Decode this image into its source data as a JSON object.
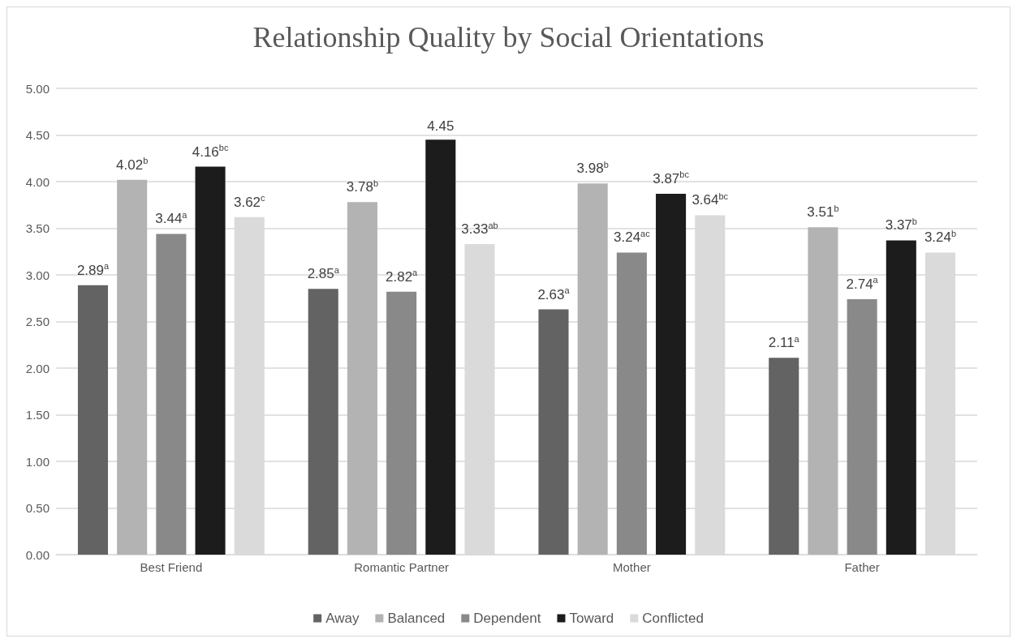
{
  "chart_data": {
    "type": "bar",
    "title": "Relationship Quality by Social Orientations",
    "categories": [
      "Best Friend",
      "Romantic Partner",
      "Mother",
      "Father"
    ],
    "series": [
      {
        "name": "Away",
        "color": "#636363",
        "values": [
          2.89,
          2.85,
          2.63,
          2.11
        ],
        "value_labels": [
          "2.89$^{a}$",
          "2.85$^{a}$",
          "2.63$^{a}$",
          "2.11$^{a}$"
        ]
      },
      {
        "name": "Balanced",
        "color": "#b3b3b3",
        "values": [
          4.02,
          3.78,
          3.98,
          3.51
        ],
        "value_labels": [
          "4.02$^{b}$",
          "3.78$^{b}$",
          "3.98$^{b}$",
          "3.51$^{b}$"
        ]
      },
      {
        "name": "Dependent",
        "color": "#898989",
        "values": [
          3.44,
          2.82,
          3.24,
          2.74
        ],
        "value_labels": [
          "3.44$^{a}$",
          "2.82$^{a}$",
          "3.24$^{ac}$",
          "2.74$^{a}$"
        ]
      },
      {
        "name": "Toward",
        "color": "#1c1c1c",
        "values": [
          4.16,
          4.45,
          3.87,
          3.37
        ],
        "value_labels": [
          "4.16$^{bc}$",
          "4.45",
          "3.87$^{bc}$",
          "3.37$^{b}$"
        ]
      },
      {
        "name": "Conflicted",
        "color": "#dadada",
        "values": [
          3.62,
          3.33,
          3.64,
          3.24
        ],
        "value_labels": [
          "3.62$^{c}$",
          "3.33$^{ab}$",
          "3.64$^{bc}$",
          "3.24$^{b}$"
        ]
      }
    ],
    "ylim": [
      0,
      5
    ],
    "yticks": [
      {
        "value": 0,
        "label": "0.00"
      },
      {
        "value": 0.5,
        "label": "0.50"
      },
      {
        "value": 1,
        "label": "1.00"
      },
      {
        "value": 1.5,
        "label": "1.50"
      },
      {
        "value": 2,
        "label": "2.00"
      },
      {
        "value": 2.5,
        "label": "2.50"
      },
      {
        "value": 3,
        "label": "3.00"
      },
      {
        "value": 3.5,
        "label": "3.50"
      },
      {
        "value": 4,
        "label": "4.00"
      },
      {
        "value": 4.5,
        "label": "4.50"
      },
      {
        "value": 5,
        "label": "5.00"
      }
    ],
    "grid": "y",
    "legend": "bottom"
  }
}
